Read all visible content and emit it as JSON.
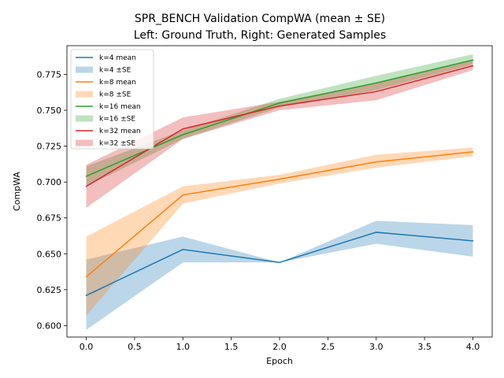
{
  "chart_data": {
    "type": "line",
    "title": "SPR_BENCH Validation CompWA (mean ± SE)",
    "subtitle": "Left: Ground Truth, Right: Generated Samples",
    "xlabel": "Epoch",
    "ylabel": "CompWA",
    "xlim": [
      -0.2,
      4.2
    ],
    "ylim": [
      0.592,
      0.795
    ],
    "xticks": [
      "0.0",
      "0.5",
      "1.0",
      "1.5",
      "2.0",
      "2.5",
      "3.0",
      "3.5",
      "4.0"
    ],
    "yticks": [
      "0.600",
      "0.625",
      "0.650",
      "0.675",
      "0.700",
      "0.725",
      "0.750",
      "0.775"
    ],
    "x": [
      0,
      1,
      2,
      3,
      4
    ],
    "grid": false,
    "legend_position": "top-left",
    "series": [
      {
        "name": "k=4 mean",
        "band_name": "k=4 ±SE",
        "color": "#1f77b4",
        "values": [
          0.621,
          0.653,
          0.644,
          0.665,
          0.659
        ],
        "lower": [
          0.597,
          0.644,
          0.644,
          0.657,
          0.648
        ],
        "upper": [
          0.646,
          0.662,
          0.644,
          0.673,
          0.67
        ]
      },
      {
        "name": "k=8 mean",
        "band_name": "k=8 ±SE",
        "color": "#ff7f0e",
        "values": [
          0.634,
          0.691,
          0.702,
          0.714,
          0.721
        ],
        "lower": [
          0.607,
          0.685,
          0.699,
          0.71,
          0.718
        ],
        "upper": [
          0.662,
          0.697,
          0.705,
          0.719,
          0.724
        ]
      },
      {
        "name": "k=16 mean",
        "band_name": "k=16 ±SE",
        "color": "#2ca02c",
        "values": [
          0.704,
          0.733,
          0.755,
          0.769,
          0.785
        ],
        "lower": [
          0.697,
          0.73,
          0.752,
          0.764,
          0.782
        ],
        "upper": [
          0.711,
          0.736,
          0.758,
          0.774,
          0.789
        ]
      },
      {
        "name": "k=32 mean",
        "band_name": "k=32 ±SE",
        "color": "#d62728",
        "values": [
          0.697,
          0.737,
          0.753,
          0.763,
          0.781
        ],
        "lower": [
          0.682,
          0.73,
          0.75,
          0.757,
          0.778
        ],
        "upper": [
          0.712,
          0.745,
          0.756,
          0.769,
          0.785
        ]
      }
    ]
  }
}
